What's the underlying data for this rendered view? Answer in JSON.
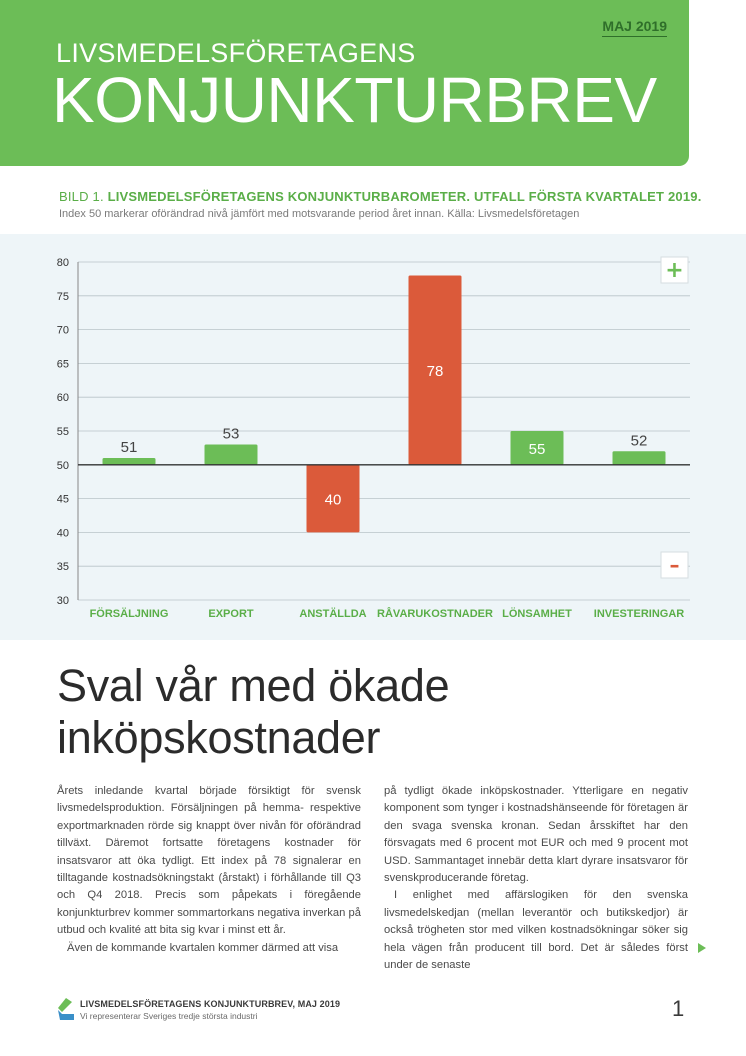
{
  "header": {
    "subtitle": "LIVSMEDELSFÖRETAGENS",
    "title": "KONJUNKTURBREV",
    "date": "MAJ 2019"
  },
  "figure": {
    "label": "BILD 1.",
    "title": "LIVSMEDELSFÖRETAGENS KONJUNKTURBAROMETER. UTFALL FÖRSTA KVARTALET 2019.",
    "note": "Index 50 markerar oförändrad nivå jämfört med motsvarande period året innan. Källa: Livsmedelsföretagen",
    "plus_symbol": "+",
    "minus_symbol": "–"
  },
  "chart_data": {
    "type": "bar",
    "baseline": 50,
    "ylim": [
      30,
      80
    ],
    "yticks": [
      30,
      35,
      40,
      45,
      50,
      55,
      60,
      65,
      70,
      75,
      80
    ],
    "grid": true,
    "categories": [
      "FÖRSÄLJNING",
      "EXPORT",
      "ANSTÄLLDA",
      "RÅVARUKOSTNADER",
      "LÖNSAMHET",
      "INVESTERINGAR"
    ],
    "values": [
      51,
      53,
      40,
      78,
      55,
      52
    ],
    "bar_colors": [
      "#6cbd57",
      "#6cbd57",
      "#db5a3a",
      "#db5a3a",
      "#6cbd57",
      "#6cbd57"
    ],
    "label_inside": [
      false,
      false,
      true,
      true,
      true,
      false
    ],
    "colors": {
      "positive": "#6cbd57",
      "negative": "#db5a3a",
      "category_label": "#5aae48"
    }
  },
  "article": {
    "headline_line1": "Sval vår med ökade",
    "headline_line2": "inköpskostnader",
    "left_p1": "Årets inledande kvartal började försiktigt för svensk livsmedelsproduktion. Försäljningen på hemma- respektive exportmarknaden rörde sig knappt över nivån för oförändrad tillväxt. Däremot fortsatte företagens kostnader för insatsvaror att öka tydligt. Ett index på 78 signalerar en tilltagande kostnadsökningstakt (årstakt) i förhållande till Q3 och Q4 2018. Precis som påpekats i föregående konjunkturbrev kommer sommartorkans negativa inverkan på utbud och kvalité att bita sig kvar i minst ett år.",
    "left_p2": "Även de kommande kvartalen kommer därmed att visa",
    "right_p1": "på tydligt ökade inköpskostnader. Ytterligare en negativ komponent som tynger i kostnadshänseende för företagen är den svaga svenska kronan. Sedan årsskiftet har den försvagats med 6 procent mot EUR och med 9 procent mot USD. Sammantaget innebär detta klart dyrare insatsvaror för svenskproducerande företag.",
    "right_p2": "I enlighet med affärslogiken för den svenska livsmedelskedjan (mellan leverantör och butikskedjor) är också trögheten stor med vilken kostnadsökningar söker sig hela vägen från producent till bord. Det är således först under de senaste"
  },
  "footer": {
    "title": "LIVSMEDELSFÖRETAGENS KONJUNKTURBREV, MAJ 2019",
    "subtitle": "Vi representerar Sveriges tredje största industri",
    "page_number": "1"
  }
}
